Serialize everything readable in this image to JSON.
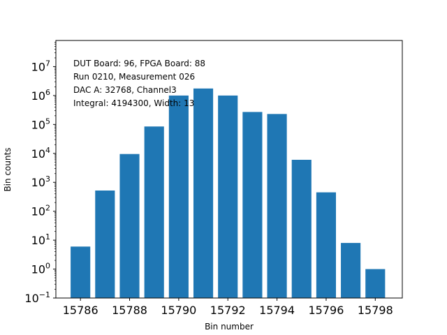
{
  "chart_data": {
    "type": "bar",
    "xlabel": "Bin number",
    "ylabel": "Bin counts",
    "yscale": "log",
    "ylim": [
      0.1,
      80000000
    ],
    "xlim": [
      15785.0,
      15799.1
    ],
    "grid": false,
    "legend": "none",
    "bar_color": "#1f77b4",
    "x": [
      15786,
      15787,
      15788,
      15789,
      15790,
      15791,
      15792,
      15793,
      15794,
      15795,
      15796,
      15797,
      15798
    ],
    "values": [
      6,
      520,
      9500,
      85000,
      1000000,
      1750000,
      1000000,
      270000,
      230000,
      6000,
      450,
      8,
      1
    ],
    "xticks": [
      15786,
      15788,
      15790,
      15792,
      15794,
      15796,
      15798
    ],
    "xtick_labels": [
      "15786",
      "15788",
      "15790",
      "15792",
      "15794",
      "15796",
      "15798"
    ],
    "yticks": [
      {
        "base": "10",
        "exp": "−1",
        "value": 0.1
      },
      {
        "base": "10",
        "exp": "0",
        "value": 1
      },
      {
        "base": "10",
        "exp": "1",
        "value": 10
      },
      {
        "base": "10",
        "exp": "2",
        "value": 100
      },
      {
        "base": "10",
        "exp": "3",
        "value": 1000
      },
      {
        "base": "10",
        "exp": "4",
        "value": 10000
      },
      {
        "base": "10",
        "exp": "5",
        "value": 100000
      },
      {
        "base": "10",
        "exp": "6",
        "value": 1000000
      },
      {
        "base": "10",
        "exp": "7",
        "value": 10000000
      }
    ],
    "annotations": [
      "DUT Board: 96, FPGA Board: 88",
      "Run 0210, Measurement 026",
      "DAC A: 32768, Channel3",
      "Integral: 4194300, Width: 13"
    ]
  }
}
